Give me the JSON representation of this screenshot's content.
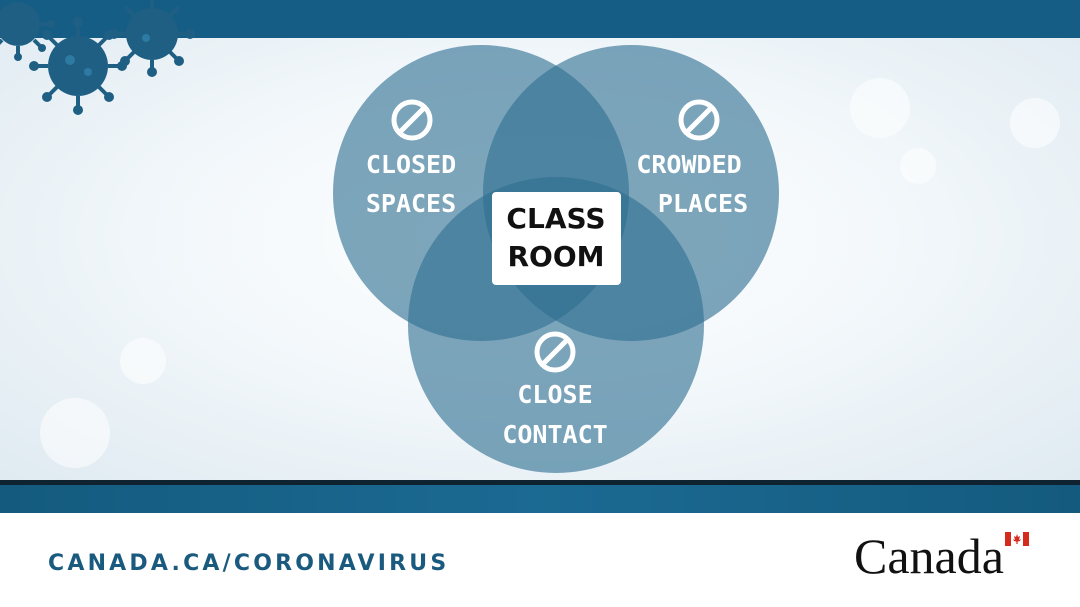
{
  "diagram": {
    "circles": [
      {
        "line1": "CLOSED",
        "line2": "SPACES",
        "icon": "prohibited-icon"
      },
      {
        "line1": "CROWDED",
        "line2": "PLACES",
        "icon": "prohibited-icon"
      },
      {
        "line1": "CLOSE",
        "line2": "CONTACT",
        "icon": "prohibited-icon"
      }
    ],
    "center": {
      "line1": "CLASS",
      "line2": "ROOM"
    }
  },
  "footer": {
    "url": "CANADA.CA/CORONAVIRUS",
    "wordmark": "Canada"
  },
  "colors": {
    "brand_blue": "#155d84",
    "circle_fill": "#2f6f92",
    "text_dark": "#111111"
  }
}
